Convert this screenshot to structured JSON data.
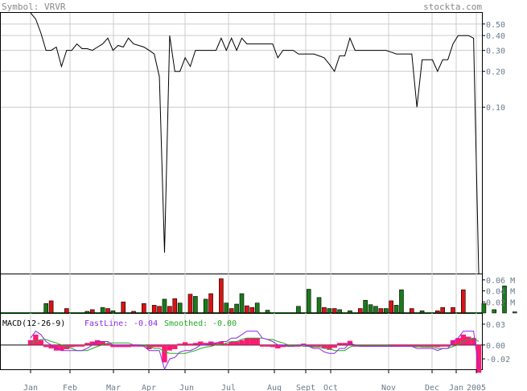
{
  "header": {
    "symbol_label": "Symbol: VRVR",
    "site": "stockta.com"
  },
  "chart_data": [
    {
      "type": "line",
      "panel": "price",
      "scale": "log",
      "yticks": [
        0.5,
        0.4,
        0.3,
        0.2,
        0.1
      ],
      "ytick_labels": [
        "0.50",
        "0.40",
        "0.30",
        "0.20",
        "0.10"
      ],
      "ylim": [
        0.004,
        0.62
      ],
      "grid": true,
      "x_labels": [
        "Jan",
        "Feb",
        "Mar",
        "Apr",
        "May",
        "Jun",
        "Jul",
        "Aug",
        "Sept",
        "Oct",
        "Nov",
        "Dec",
        "Jan",
        "2005"
      ],
      "series": [
        {
          "values": [
            0.62,
            0.55,
            0.42,
            0.3,
            0.3,
            0.32,
            0.22,
            0.3,
            0.3,
            0.34,
            0.31,
            0.31,
            0.3,
            0.32,
            0.34,
            0.38,
            0.3,
            0.33,
            0.32,
            0.38,
            0.34,
            0.33,
            0.32,
            0.3,
            0.28,
            0.18,
            0.006,
            0.4,
            0.2,
            0.2,
            0.26,
            0.22,
            0.3,
            0.3,
            0.3,
            0.3,
            0.3,
            0.38,
            0.3,
            0.38,
            0.3,
            0.38,
            0.34,
            0.34,
            0.34,
            0.34,
            0.34,
            0.34,
            0.26,
            0.3,
            0.3,
            0.3,
            0.28,
            0.28,
            0.28,
            0.28,
            0.27,
            0.26,
            0.23,
            0.2,
            0.27,
            0.27,
            0.38,
            0.3,
            0.3,
            0.3,
            0.3,
            0.3,
            0.3,
            0.3,
            0.29,
            0.28,
            0.28,
            0.28,
            0.28,
            0.1,
            0.25,
            0.25,
            0.25,
            0.2,
            0.25,
            0.25,
            0.34,
            0.4,
            0.4,
            0.4,
            0.38,
            0.004
          ]
        }
      ]
    },
    {
      "type": "bar",
      "panel": "volume",
      "ytick_labels": [
        "0.06 M",
        "0.04 M",
        "0.02 M"
      ],
      "ylim": [
        0,
        0.07
      ],
      "up_color": "#1a7a1a",
      "down_color": "#dd1111",
      "bars": [
        {
          "x": 3,
          "v": 0.017,
          "c": "up"
        },
        {
          "x": 4,
          "v": 0.022,
          "c": "down"
        },
        {
          "x": 7,
          "v": 0.008,
          "c": "down"
        },
        {
          "x": 11,
          "v": 0.003,
          "c": "up"
        },
        {
          "x": 12,
          "v": 0.006,
          "c": "down"
        },
        {
          "x": 14,
          "v": 0.01,
          "c": "up"
        },
        {
          "x": 15,
          "v": 0.008,
          "c": "down"
        },
        {
          "x": 16,
          "v": 0.004,
          "c": "up"
        },
        {
          "x": 18,
          "v": 0.02,
          "c": "down"
        },
        {
          "x": 20,
          "v": 0.003,
          "c": "down"
        },
        {
          "x": 22,
          "v": 0.017,
          "c": "down"
        },
        {
          "x": 24,
          "v": 0.014,
          "c": "down"
        },
        {
          "x": 25,
          "v": 0.012,
          "c": "down"
        },
        {
          "x": 26,
          "v": 0.025,
          "c": "up"
        },
        {
          "x": 27,
          "v": 0.012,
          "c": "down"
        },
        {
          "x": 28,
          "v": 0.026,
          "c": "down"
        },
        {
          "x": 29,
          "v": 0.018,
          "c": "up"
        },
        {
          "x": 31,
          "v": 0.034,
          "c": "down"
        },
        {
          "x": 32,
          "v": 0.03,
          "c": "up"
        },
        {
          "x": 34,
          "v": 0.025,
          "c": "up"
        },
        {
          "x": 35,
          "v": 0.035,
          "c": "down"
        },
        {
          "x": 37,
          "v": 0.062,
          "c": "down"
        },
        {
          "x": 38,
          "v": 0.018,
          "c": "up"
        },
        {
          "x": 39,
          "v": 0.008,
          "c": "down"
        },
        {
          "x": 40,
          "v": 0.016,
          "c": "up"
        },
        {
          "x": 41,
          "v": 0.035,
          "c": "up"
        },
        {
          "x": 42,
          "v": 0.013,
          "c": "down"
        },
        {
          "x": 43,
          "v": 0.01,
          "c": "down"
        },
        {
          "x": 44,
          "v": 0.018,
          "c": "up"
        },
        {
          "x": 46,
          "v": 0.005,
          "c": "up"
        },
        {
          "x": 52,
          "v": 0.012,
          "c": "up"
        },
        {
          "x": 54,
          "v": 0.043,
          "c": "up"
        },
        {
          "x": 56,
          "v": 0.028,
          "c": "up"
        },
        {
          "x": 57,
          "v": 0.01,
          "c": "down"
        },
        {
          "x": 58,
          "v": 0.008,
          "c": "up"
        },
        {
          "x": 59,
          "v": 0.008,
          "c": "down"
        },
        {
          "x": 60,
          "v": 0.006,
          "c": "up"
        },
        {
          "x": 62,
          "v": 0.004,
          "c": "up"
        },
        {
          "x": 64,
          "v": 0.008,
          "c": "down"
        },
        {
          "x": 65,
          "v": 0.023,
          "c": "up"
        },
        {
          "x": 66,
          "v": 0.015,
          "c": "up"
        },
        {
          "x": 67,
          "v": 0.012,
          "c": "up"
        },
        {
          "x": 68,
          "v": 0.008,
          "c": "down"
        },
        {
          "x": 69,
          "v": 0.008,
          "c": "up"
        },
        {
          "x": 70,
          "v": 0.022,
          "c": "down"
        },
        {
          "x": 71,
          "v": 0.014,
          "c": "up"
        },
        {
          "x": 72,
          "v": 0.042,
          "c": "up"
        },
        {
          "x": 74,
          "v": 0.008,
          "c": "down"
        },
        {
          "x": 76,
          "v": 0.004,
          "c": "up"
        },
        {
          "x": 79,
          "v": 0.004,
          "c": "down"
        },
        {
          "x": 80,
          "v": 0.01,
          "c": "down"
        },
        {
          "x": 82,
          "v": 0.01,
          "c": "down"
        },
        {
          "x": 84,
          "v": 0.042,
          "c": "down"
        },
        {
          "x": 88,
          "v": 0.017,
          "c": "up"
        },
        {
          "x": 90,
          "v": 0.006,
          "c": "up"
        },
        {
          "x": 92,
          "v": 0.049,
          "c": "up"
        },
        {
          "x": 94,
          "v": 0.002,
          "c": "up"
        }
      ]
    },
    {
      "type": "line",
      "panel": "macd",
      "title": "MACD(12-26-9)",
      "fastline_label": "FastLine:",
      "fastline_value": "-0.04",
      "smoothed_label": "Smoothed:",
      "smoothed_value": "-0.00",
      "ytick_labels": [
        "0.03",
        "0.00",
        "-0.02"
      ],
      "yticks": [
        0.03,
        0.0,
        -0.02
      ],
      "ylim": [
        -0.035,
        0.045
      ],
      "fast_color": "#8a2be2",
      "smooth_color": "#22aa22",
      "hist_color": "#ff1a75",
      "series": [
        {
          "name": "FastLine",
          "values": [
            0.01,
            0.02,
            0.015,
            0.005,
            0.0,
            -0.005,
            -0.008,
            -0.008,
            -0.008,
            -0.008,
            -0.008,
            -0.005,
            0.0,
            0.005,
            0.005,
            0.005,
            0.0,
            0.0,
            0.0,
            0.0,
            0.0,
            0.0,
            -0.002,
            -0.008,
            -0.008,
            -0.008,
            -0.035,
            -0.02,
            -0.018,
            -0.01,
            -0.008,
            -0.008,
            -0.005,
            0.0,
            0.0,
            0.003,
            0.003,
            0.005,
            0.005,
            0.01,
            0.01,
            0.015,
            0.02,
            0.02,
            0.02,
            0.01,
            0.008,
            0.005,
            0.0,
            0.0,
            -0.002,
            -0.002,
            0.0,
            0.0,
            -0.002,
            -0.005,
            -0.005,
            -0.01,
            -0.012,
            -0.012,
            -0.005,
            -0.005,
            0.003,
            0.0,
            -0.002,
            -0.002,
            -0.002,
            -0.002,
            -0.002,
            -0.002,
            -0.002,
            -0.002,
            -0.002,
            -0.002,
            -0.002,
            -0.005,
            -0.005,
            -0.005,
            -0.005,
            -0.008,
            -0.005,
            -0.005,
            0.005,
            0.01,
            0.02,
            0.02,
            0.02,
            -0.035
          ]
        },
        {
          "name": "Smoothed",
          "values": [
            0.003,
            0.005,
            0.008,
            0.008,
            0.005,
            0.003,
            0.0,
            -0.002,
            -0.005,
            -0.008,
            -0.008,
            -0.008,
            -0.005,
            -0.002,
            0.0,
            0.003,
            0.003,
            0.003,
            0.003,
            0.003,
            0.0,
            0.0,
            0.0,
            -0.002,
            -0.005,
            -0.005,
            -0.01,
            -0.012,
            -0.012,
            -0.012,
            -0.012,
            -0.01,
            -0.008,
            -0.005,
            -0.003,
            -0.002,
            0.0,
            0.0,
            0.003,
            0.005,
            0.005,
            0.008,
            0.01,
            0.01,
            0.01,
            0.01,
            0.008,
            0.008,
            0.005,
            0.003,
            0.0,
            0.0,
            0.0,
            -0.002,
            -0.002,
            -0.003,
            -0.003,
            -0.005,
            -0.005,
            -0.008,
            -0.008,
            -0.008,
            -0.003,
            0.0,
            0.0,
            0.0,
            0.0,
            0.0,
            0.0,
            0.0,
            -0.002,
            -0.002,
            -0.002,
            -0.002,
            -0.002,
            -0.002,
            -0.003,
            -0.003,
            -0.003,
            -0.005,
            -0.005,
            -0.005,
            -0.002,
            0.0,
            0.005,
            0.008,
            0.01,
            0.005
          ]
        }
      ]
    }
  ]
}
